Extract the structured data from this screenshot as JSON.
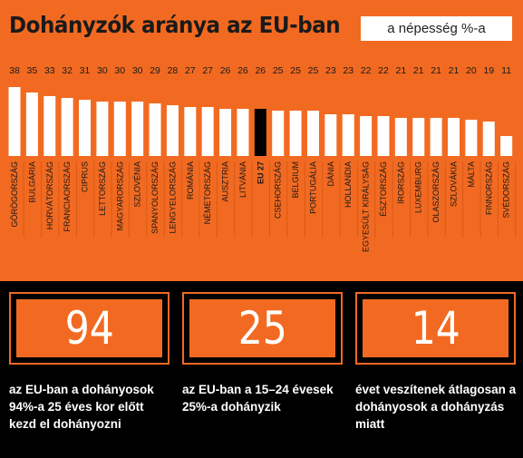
{
  "header": {
    "title": "Dohányzók aránya az EU-ban",
    "unit_label": "a népesség %-a"
  },
  "chart_data": {
    "type": "bar",
    "title": "Dohányzók aránya az EU-ban",
    "unit": "a népesség %-a",
    "categories": [
      "GÖRÖGORSZÁG",
      "BULGÁRIA",
      "HORVÁTORSZÁG",
      "FRANCIAORSZÁG",
      "CIPRUS",
      "LETTORSZÁG",
      "MAGYARORSZÁG",
      "SZLOVÉNIA",
      "SPANYOLORSZÁG",
      "LENGYELORSZÁG",
      "ROMÁNIA",
      "NÉMETORSZÁG",
      "AUSZTRIA",
      "LITVÁNIA",
      "EU 27",
      "CSEHORSZÁG",
      "BELGIUM",
      "PORTUGÁLIA",
      "DÁNIA",
      "HOLLANDIA",
      "EGYESÜLT KIRÁLYSÁG",
      "ÉSZTORSZÁG",
      "ÍRORSZÁG",
      "LUXEMBURG",
      "OLASZORSZÁG",
      "SZLOVÁKIA",
      "MÁLTA",
      "FINNORSZÁG",
      "SVÉDORSZÁG"
    ],
    "values": [
      38,
      35,
      33,
      32,
      31,
      30,
      30,
      30,
      29,
      28,
      27,
      27,
      26,
      26,
      26,
      25,
      25,
      25,
      23,
      23,
      22,
      22,
      21,
      21,
      21,
      21,
      20,
      19,
      11
    ],
    "highlight": "EU 27",
    "colors": {
      "bar": "#ffffff",
      "highlight": "#000000",
      "background": "#f26a21"
    }
  },
  "stats": [
    {
      "value": "94",
      "description": "az EU-ban a dohányosok 94%-a 25 éves kor előtt kezd el dohányozni"
    },
    {
      "value": "25",
      "description": "az EU-ban a 15–24 évesek 25%-a dohányzik"
    },
    {
      "value": "14",
      "description": "évet veszítenek átlagosan a dohányosok a dohányzás miatt"
    }
  ]
}
